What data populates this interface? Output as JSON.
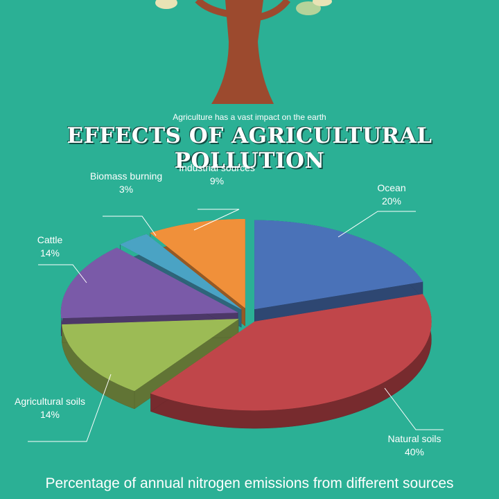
{
  "subtitle": "Agriculture has a vast impact on the earth",
  "chart_data": {
    "type": "pie",
    "title": "EFFECTS OF AGRICULTURAL POLLUTION",
    "caption": "Percentage of annual nitrogen emissions from different sources",
    "categories": [
      "Ocean",
      "Natural soils",
      "Agricultural soils",
      "Cattle",
      "Biomass burning",
      "Industrial sources"
    ],
    "values": [
      20,
      40,
      14,
      14,
      3,
      9
    ],
    "value_labels": [
      "20%",
      "40%",
      "14%",
      "14%",
      "3%",
      "9%"
    ],
    "colors": [
      "#4a72b8",
      "#c0464a",
      "#9cbb55",
      "#7a5aa8",
      "#4aa3c4",
      "#f0903a"
    ]
  }
}
